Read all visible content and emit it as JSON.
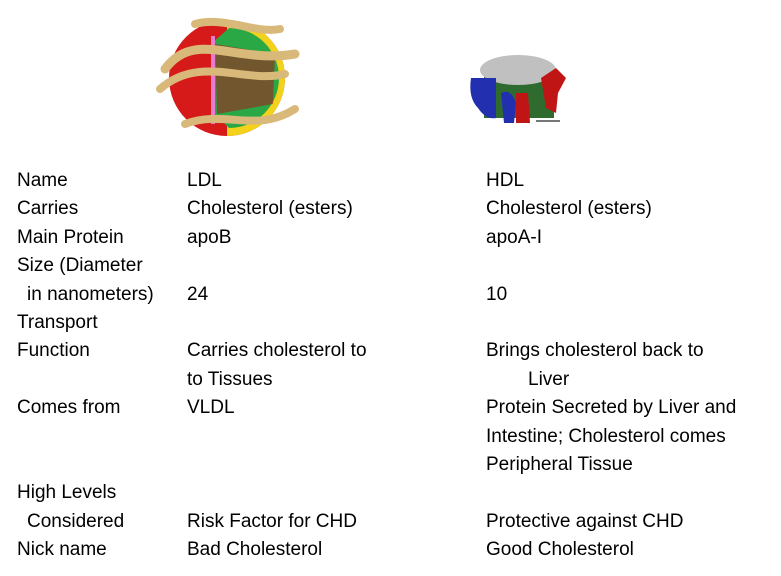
{
  "images": {
    "ldl": {
      "name": "ldl-particle-illustration",
      "colors": [
        "#d61a1a",
        "#d9b97a",
        "#2aa845",
        "#f2d21a",
        "#e87ad2"
      ]
    },
    "hdl": {
      "name": "hdl-particle-illustration",
      "colors": [
        "#c0c0c0",
        "#2230b0",
        "#c01515",
        "#2f6b2f"
      ]
    }
  },
  "table": {
    "rows": [
      {
        "label": "Name",
        "ldl": "LDL",
        "hdl": "HDL"
      },
      {
        "label": "Carries",
        "ldl": "Cholesterol (esters)",
        "hdl": "Cholesterol (esters)"
      },
      {
        "label": "Main Protein",
        "ldl": "apoB",
        "hdl": "apoA-I"
      },
      {
        "label": "Size (Diameter",
        "ldl": "",
        "hdl": ""
      },
      {
        "label": "in nanometers)",
        "ldl": "24",
        "hdl": "10"
      },
      {
        "label": "Transport",
        "ldl": "",
        "hdl": ""
      },
      {
        "label": "Function",
        "ldl": "Carries cholesterol to",
        "hdl": "Brings cholesterol back to"
      },
      {
        "label": "",
        "ldl": "to Tissues",
        "hdl": "Liver"
      },
      {
        "label": "Comes from",
        "ldl": "VLDL",
        "hdl": "Protein Secreted by Liver and"
      },
      {
        "label": "",
        "ldl": "",
        "hdl": "Intestine; Cholesterol comes"
      },
      {
        "label": "",
        "ldl": "",
        "hdl": "Peripheral Tissue"
      },
      {
        "label": "High Levels",
        "ldl": "",
        "hdl": ""
      },
      {
        "label": "Considered",
        "ldl": "Risk Factor for CHD",
        "hdl": "Protective against CHD"
      },
      {
        "label": "Nick name",
        "ldl": "Bad Cholesterol",
        "hdl": "Good Cholesterol"
      }
    ]
  }
}
